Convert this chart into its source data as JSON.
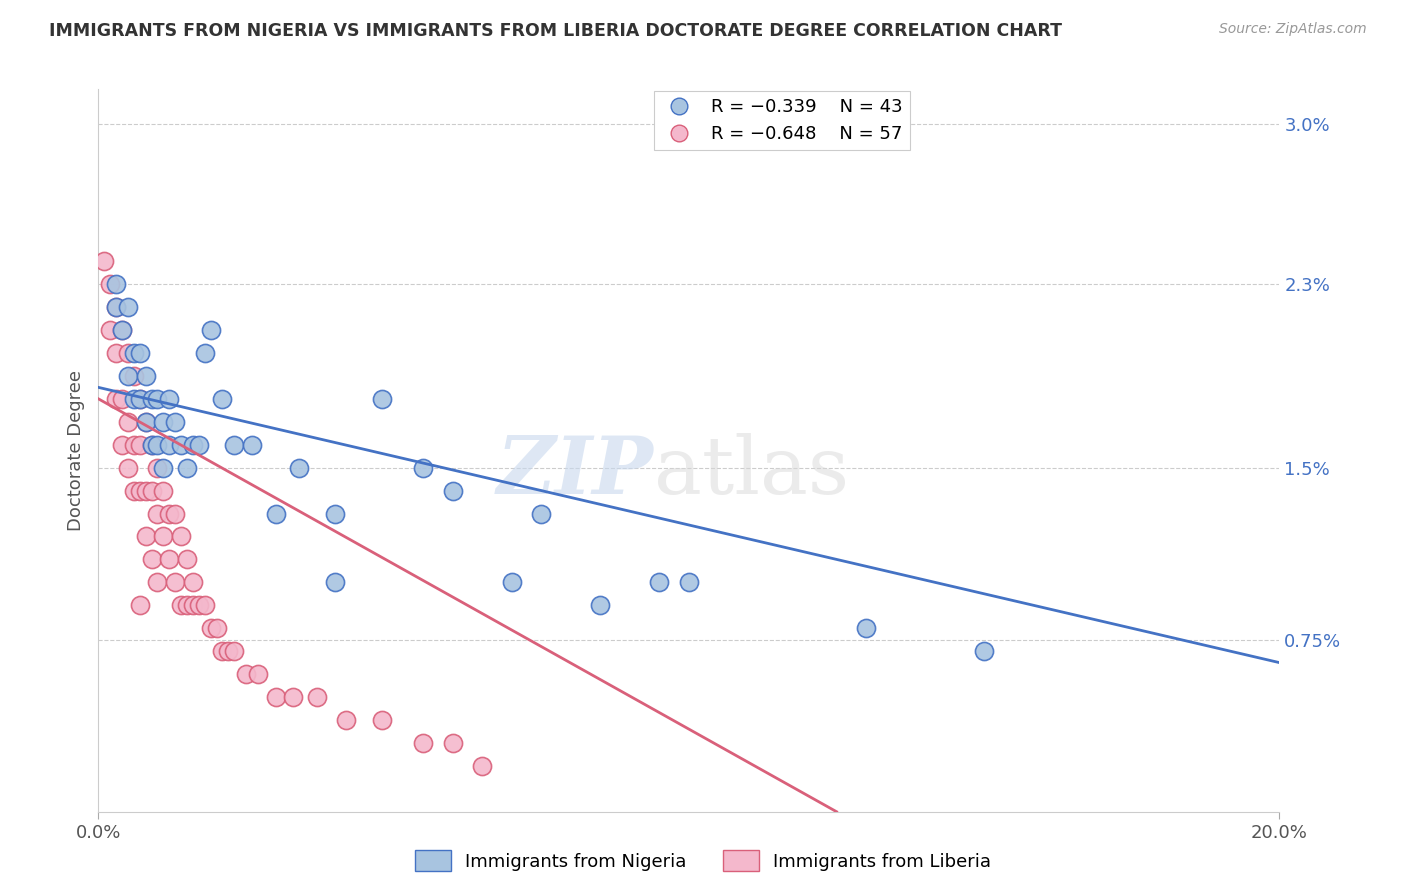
{
  "title": "IMMIGRANTS FROM NIGERIA VS IMMIGRANTS FROM LIBERIA DOCTORATE DEGREE CORRELATION CHART",
  "source": "Source: ZipAtlas.com",
  "ylabel": "Doctorate Degree",
  "y_tick_values_right": [
    0.0075,
    0.015,
    0.023,
    0.03
  ],
  "y_tick_labels_right": [
    "0.75%",
    "1.5%",
    "2.3%",
    "3.0%"
  ],
  "x_min": 0.0,
  "x_max": 0.2,
  "y_min": 0.0,
  "y_max": 0.0315,
  "nigeria_color": "#a8c4e0",
  "liberia_color": "#f4b8cc",
  "nigeria_line_color": "#4472c4",
  "liberia_line_color": "#d9607a",
  "nigeria_label": "Immigrants from Nigeria",
  "liberia_label": "Immigrants from Liberia",
  "watermark_zip": "ZIP",
  "watermark_atlas": "atlas",
  "nigeria_trend_x": [
    0.0,
    0.2
  ],
  "nigeria_trend_y": [
    0.0185,
    0.0065
  ],
  "liberia_trend_x": [
    0.0,
    0.125
  ],
  "liberia_trend_y": [
    0.018,
    0.0
  ],
  "nigeria_x": [
    0.003,
    0.003,
    0.004,
    0.005,
    0.005,
    0.006,
    0.006,
    0.007,
    0.007,
    0.008,
    0.008,
    0.009,
    0.009,
    0.01,
    0.01,
    0.011,
    0.011,
    0.012,
    0.012,
    0.013,
    0.014,
    0.015,
    0.016,
    0.017,
    0.018,
    0.019,
    0.021,
    0.023,
    0.026,
    0.03,
    0.034,
    0.04,
    0.048,
    0.06,
    0.075,
    0.095,
    0.04,
    0.055,
    0.07,
    0.085,
    0.1,
    0.13,
    0.15
  ],
  "nigeria_y": [
    0.023,
    0.022,
    0.021,
    0.022,
    0.019,
    0.02,
    0.018,
    0.02,
    0.018,
    0.019,
    0.017,
    0.018,
    0.016,
    0.018,
    0.016,
    0.017,
    0.015,
    0.018,
    0.016,
    0.017,
    0.016,
    0.015,
    0.016,
    0.016,
    0.02,
    0.021,
    0.018,
    0.016,
    0.016,
    0.013,
    0.015,
    0.013,
    0.018,
    0.014,
    0.013,
    0.01,
    0.01,
    0.015,
    0.01,
    0.009,
    0.01,
    0.008,
    0.007
  ],
  "liberia_x": [
    0.001,
    0.002,
    0.002,
    0.003,
    0.003,
    0.003,
    0.004,
    0.004,
    0.004,
    0.005,
    0.005,
    0.005,
    0.006,
    0.006,
    0.006,
    0.007,
    0.007,
    0.007,
    0.007,
    0.008,
    0.008,
    0.008,
    0.009,
    0.009,
    0.009,
    0.01,
    0.01,
    0.01,
    0.011,
    0.011,
    0.012,
    0.012,
    0.013,
    0.013,
    0.014,
    0.014,
    0.015,
    0.015,
    0.016,
    0.016,
    0.017,
    0.018,
    0.019,
    0.02,
    0.021,
    0.022,
    0.023,
    0.025,
    0.027,
    0.03,
    0.033,
    0.037,
    0.042,
    0.048,
    0.055,
    0.06,
    0.065
  ],
  "liberia_y": [
    0.024,
    0.023,
    0.021,
    0.022,
    0.02,
    0.018,
    0.021,
    0.018,
    0.016,
    0.02,
    0.017,
    0.015,
    0.019,
    0.016,
    0.014,
    0.018,
    0.016,
    0.014,
    0.009,
    0.017,
    0.014,
    0.012,
    0.016,
    0.014,
    0.011,
    0.015,
    0.013,
    0.01,
    0.014,
    0.012,
    0.013,
    0.011,
    0.013,
    0.01,
    0.012,
    0.009,
    0.011,
    0.009,
    0.01,
    0.009,
    0.009,
    0.009,
    0.008,
    0.008,
    0.007,
    0.007,
    0.007,
    0.006,
    0.006,
    0.005,
    0.005,
    0.005,
    0.004,
    0.004,
    0.003,
    0.003,
    0.002
  ]
}
